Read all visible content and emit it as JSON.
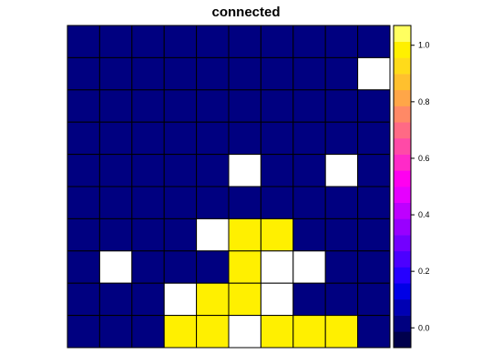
{
  "chart_data": {
    "type": "heatmap",
    "title": "connected",
    "grid": true,
    "legend": "right",
    "na_color": "#ffffff",
    "rows_top_to_bottom": [
      [
        0,
        0,
        0,
        0,
        0,
        0,
        0,
        0,
        0,
        0
      ],
      [
        0,
        0,
        0,
        0,
        0,
        0,
        0,
        0,
        0,
        null
      ],
      [
        0,
        0,
        0,
        0,
        0,
        0,
        0,
        0,
        0,
        0
      ],
      [
        0,
        0,
        0,
        0,
        0,
        0,
        0,
        0,
        0,
        0
      ],
      [
        0,
        0,
        0,
        0,
        0,
        null,
        0,
        0,
        null,
        0
      ],
      [
        0,
        0,
        0,
        0,
        0,
        0,
        0,
        0,
        0,
        0
      ],
      [
        0,
        0,
        0,
        0,
        null,
        1,
        1,
        0,
        0,
        0
      ],
      [
        0,
        null,
        0,
        0,
        0,
        1,
        null,
        null,
        0,
        0
      ],
      [
        0,
        0,
        0,
        null,
        1,
        1,
        null,
        0,
        0,
        0
      ],
      [
        0,
        0,
        0,
        1,
        1,
        null,
        1,
        1,
        1,
        0
      ]
    ],
    "colorbar": {
      "zlim": [
        -0.07,
        1.07
      ],
      "ticks": [
        0.0,
        0.2,
        0.4,
        0.6,
        0.8,
        1.0
      ],
      "tick_labels": [
        "0.0",
        "0.2",
        "0.4",
        "0.6",
        "0.8",
        "1.0"
      ],
      "colors": [
        "#00004C",
        "#000080",
        "#0000B3",
        "#0000E6",
        "#2600FF",
        "#4C00FF",
        "#7300FF",
        "#9900FF",
        "#BE00FF",
        "#E600FF",
        "#FF00F0",
        "#FF2AC8",
        "#FF4AA7",
        "#FF6A85",
        "#FF8966",
        "#FFA648",
        "#FFC02E",
        "#FFDB1A",
        "#FFF000",
        "#FFFF60"
      ]
    }
  }
}
